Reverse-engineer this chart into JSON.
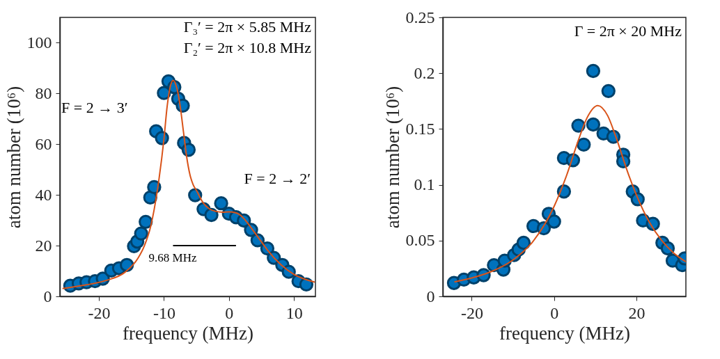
{
  "chart_data": [
    {
      "type": "scatter",
      "xlabel": "frequency (MHz)",
      "ylabel": "atom number (10⁶)",
      "xlim": [
        -26,
        13.3
      ],
      "xticks": [
        -20,
        -10,
        0,
        10
      ],
      "ylim": [
        0,
        110
      ],
      "yticks": [
        0,
        20,
        40,
        60,
        80,
        100
      ],
      "grid": false,
      "marker": "circle",
      "series": [
        {
          "type": "scatter",
          "color": "#0072bd",
          "x": [
            -24.4,
            -23.1,
            -21.9,
            -20.6,
            -19.4,
            -18.1,
            -16.9,
            -15.7,
            -14.6,
            -14.1,
            -13.5,
            -12.8,
            -12.1,
            -11.5,
            -11.2,
            -10.3,
            -10.0,
            -9.3,
            -8.4,
            -7.8,
            -7.1,
            -6.9,
            -6.2,
            -5.2,
            -3.9,
            -2.7,
            -1.2,
            0,
            1.1,
            2.3,
            3.4,
            4.4,
            5.9,
            6.9,
            8.2,
            9.2,
            10.7,
            11.9
          ],
          "values": [
            4.2,
            5.1,
            5.6,
            6.0,
            7.0,
            10.2,
            11.1,
            12.4,
            19.8,
            21.6,
            24.8,
            29.4,
            39.0,
            43.1,
            65.1,
            62.4,
            80.2,
            84.8,
            82.5,
            77.9,
            75.2,
            60.5,
            57.8,
            39.9,
            34.4,
            32.1,
            36.7,
            32.6,
            31.2,
            29.9,
            26.2,
            22.1,
            18.9,
            15.2,
            12.4,
            9.7,
            6.0,
            4.7
          ]
        },
        {
          "type": "line",
          "marker": "none",
          "line_style": "solid",
          "color": "#d95319",
          "x": [
            -25.6,
            -22,
            -19,
            -16,
            -14,
            -13,
            -12,
            -11,
            -10,
            -9.5,
            -9,
            -8.6,
            -8,
            -7.5,
            -7,
            -6.5,
            -6,
            -5.5,
            -5,
            -4,
            -3,
            -2,
            -1,
            0,
            1,
            2,
            3,
            4,
            5,
            6,
            8,
            10,
            12,
            13.2
          ],
          "values": [
            3.1,
            4.5,
            6.2,
            9.5,
            15,
            20,
            28,
            42,
            62,
            75,
            83,
            85.2,
            82,
            75,
            65,
            55,
            48,
            44,
            41.8,
            37,
            34.5,
            33.5,
            33.2,
            33.3,
            33,
            31.5,
            28.5,
            25,
            21.5,
            18,
            12.5,
            8.7,
            6.5,
            5.6
          ]
        },
        {
          "type": "line",
          "marker": "none",
          "line_style": "solid",
          "color": "#000000",
          "x": [
            -8.6,
            1.08
          ],
          "values": [
            20,
            20
          ]
        }
      ],
      "annotations": [
        "Γ₃′ = 2π × 5.85 MHz",
        "Γ₂′ = 2π × 10.8 MHz",
        "F = 2 → 3′",
        "F = 2 → 2′",
        "9.68 MHz"
      ]
    },
    {
      "type": "scatter",
      "xlabel": "frequency (MHz)",
      "ylabel": "atom number (10⁶)",
      "xlim": [
        -27,
        32
      ],
      "xticks": [
        -20,
        0,
        20
      ],
      "ylim": [
        0,
        0.25
      ],
      "yticks": [
        0,
        0.05,
        0.1,
        0.15,
        0.2,
        0.25
      ],
      "grid": false,
      "marker": "circle",
      "series": [
        {
          "type": "scatter",
          "color": "#0072bd",
          "x": [
            -24.3,
            -21.9,
            -19.5,
            -17.1,
            -14.6,
            -12.3,
            -12.0,
            -9.7,
            -8.6,
            -7.4,
            -5.0,
            -2.5,
            -1.3,
            0,
            2.4,
            2.4,
            4.6,
            5.9,
            7.2,
            9.5,
            9.5,
            12.0,
            13.2,
            14.4,
            16.8,
            16.8,
            19.1,
            20.3,
            21.6,
            24.0,
            26.3,
            27.6,
            28.8,
            31.1,
            31.7
          ],
          "values": [
            0.012,
            0.015,
            0.017,
            0.019,
            0.028,
            0.024,
            0.032,
            0.037,
            0.042,
            0.048,
            0.063,
            0.061,
            0.074,
            0.067,
            0.094,
            0.124,
            0.122,
            0.153,
            0.136,
            0.202,
            0.154,
            0.146,
            0.184,
            0.143,
            0.127,
            0.121,
            0.094,
            0.087,
            0.068,
            0.065,
            0.048,
            0.043,
            0.032,
            0.028,
            0.034
          ]
        },
        {
          "type": "line",
          "marker": "none",
          "line_style": "solid",
          "color": "#d95319",
          "x": [
            -24.2,
            -20,
            -15,
            -10,
            -5,
            0,
            3,
            6,
            8,
            10.6,
            13,
            15,
            18,
            20,
            23,
            26,
            29,
            32
          ],
          "values": [
            0.013,
            0.0165,
            0.0226,
            0.0326,
            0.0498,
            0.0806,
            0.108,
            0.141,
            0.16,
            0.171,
            0.162,
            0.143,
            0.11,
            0.0908,
            0.0673,
            0.0507,
            0.039,
            0.031
          ]
        }
      ],
      "annotations": [
        "Γ = 2π × 20 MHz"
      ]
    }
  ]
}
